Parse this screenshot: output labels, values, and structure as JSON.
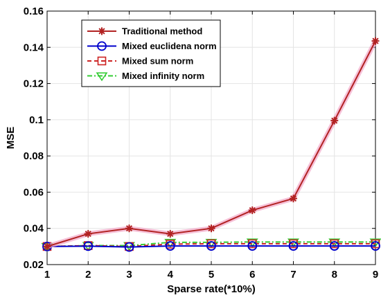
{
  "chart_data": {
    "type": "line",
    "title": "",
    "xlabel": "Sparse rate(*10%)",
    "ylabel": "MSE",
    "x": [
      1,
      2,
      3,
      4,
      5,
      6,
      7,
      8,
      9
    ],
    "xlim": [
      1,
      9
    ],
    "ylim": [
      0.02,
      0.16
    ],
    "xticks": [
      "1",
      "2",
      "3",
      "4",
      "5",
      "6",
      "7",
      "8",
      "9"
    ],
    "yticks": [
      "0.02",
      "0.04",
      "0.06",
      "0.08",
      "0.1",
      "0.12",
      "0.14",
      "0.16"
    ],
    "ytick_values": [
      0.02,
      0.04,
      0.06,
      0.08,
      0.1,
      0.12,
      0.14,
      0.16
    ],
    "grid": true,
    "legend_position": "top-left",
    "series": [
      {
        "name": "Traditional method",
        "color": "#b22222",
        "marker": "asterisk",
        "line_style": "solid",
        "values": [
          0.03,
          0.037,
          0.04,
          0.037,
          0.04,
          0.05,
          0.0565,
          0.0995,
          0.1435
        ]
      },
      {
        "name": "Mixed euclidena norm",
        "color": "#0000cc",
        "marker": "circle",
        "line_style": "solid",
        "values": [
          0.03,
          0.0302,
          0.0297,
          0.0303,
          0.0303,
          0.0303,
          0.0303,
          0.0303,
          0.0303
        ]
      },
      {
        "name": "Mixed sum norm",
        "color": "#cc2222",
        "marker": "square",
        "line_style": "dashed",
        "values": [
          0.03,
          0.0305,
          0.03,
          0.0313,
          0.0315,
          0.0315,
          0.0315,
          0.0315,
          0.0315
        ]
      },
      {
        "name": "Mixed infinity norm",
        "color": "#33cc33",
        "marker": "triangle-down",
        "line_style": "dashdot",
        "values": [
          0.03,
          0.0305,
          0.0305,
          0.0323,
          0.0323,
          0.0325,
          0.0325,
          0.0325,
          0.0325
        ]
      }
    ]
  }
}
